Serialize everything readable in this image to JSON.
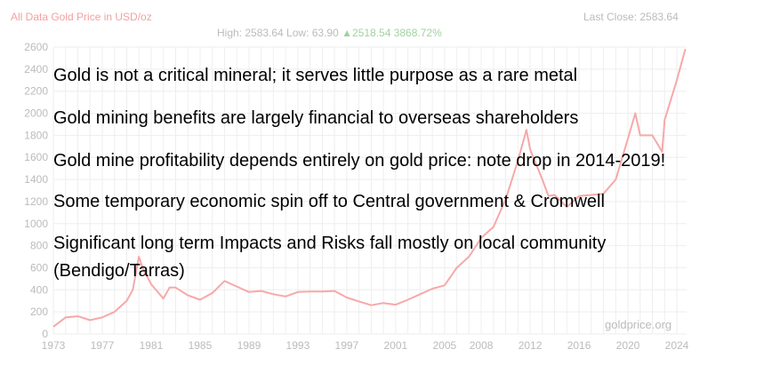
{
  "header": {
    "title": "All Data Gold Price in USD/oz",
    "last_close": "Last Close: 2583.64",
    "high_low": "High: 2583.64 Low: 63.90",
    "change": "▲2518.54 3868.72%"
  },
  "watermark": "goldprice.org",
  "colors": {
    "line": "#f7a8a8",
    "title": "#f4a0a0",
    "change": "#9fd39f",
    "grid": "#eeeeee",
    "text": "#bbbbbb"
  },
  "overlay": [
    "Gold is not a critical mineral; it serves little purpose as a rare metal",
    "Gold mining benefits are largely financial to overseas shareholders",
    "Gold mine profitability depends entirely on gold price: note drop in 2014-2019!",
    "Some temporary economic spin off to Central government & Cromwell",
    "Significant long term Impacts and Risks fall mostly on local community",
    "(Bendigo/Tarras)"
  ],
  "chart_data": {
    "type": "line",
    "title": "All Data Gold Price in USD/oz",
    "xlim": [
      1973,
      2024.8
    ],
    "ylim": [
      0,
      2600
    ],
    "grid": true,
    "xticks": [
      "1973",
      "1977",
      "1981",
      "1985",
      "1989",
      "1993",
      "1997",
      "2001",
      "2005",
      "2008",
      "2012",
      "2016",
      "2020",
      "2024"
    ],
    "yticks": [
      "0",
      "200",
      "400",
      "600",
      "800",
      "1000",
      "1200",
      "1400",
      "1600",
      "1800",
      "2000",
      "2200",
      "2400",
      "2600"
    ],
    "x": [
      1973,
      1974,
      1975,
      1976,
      1977,
      1978,
      1979,
      1979.5,
      1980,
      1980.3,
      1981,
      1982,
      1982.5,
      1983,
      1984,
      1985,
      1986,
      1987,
      1988,
      1989,
      1990,
      1991,
      1992,
      1993,
      1994,
      1995,
      1996,
      1997,
      1998,
      1999,
      2000,
      2001,
      2002,
      2003,
      2004,
      2005,
      2006,
      2007,
      2008,
      2009,
      2010,
      2011,
      2011.7,
      2012,
      2013,
      2013.5,
      2014,
      2015,
      2016,
      2017,
      2018,
      2019,
      2020,
      2020.6,
      2021,
      2022,
      2022.8,
      2023,
      2024,
      2024.7
    ],
    "y": [
      65,
      150,
      160,
      125,
      150,
      200,
      300,
      400,
      700,
      600,
      450,
      320,
      420,
      420,
      350,
      310,
      370,
      480,
      430,
      380,
      390,
      360,
      340,
      380,
      385,
      385,
      390,
      330,
      295,
      260,
      280,
      265,
      310,
      360,
      410,
      440,
      600,
      700,
      870,
      970,
      1220,
      1570,
      1850,
      1670,
      1400,
      1250,
      1260,
      1150,
      1250,
      1260,
      1270,
      1400,
      1770,
      2000,
      1800,
      1800,
      1650,
      1940,
      2300,
      2583
    ]
  }
}
